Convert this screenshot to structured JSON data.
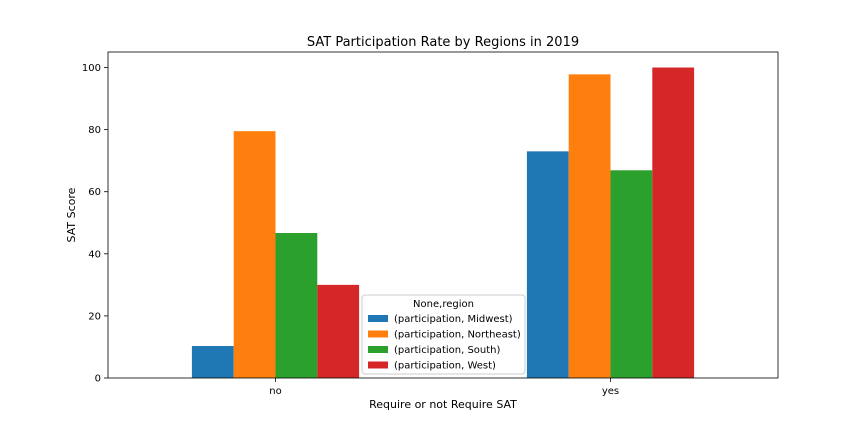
{
  "chart_data": {
    "type": "bar",
    "title": "SAT Participation Rate by Regions in 2019",
    "xlabel": "Require or not Require SAT",
    "ylabel": "SAT Score",
    "categories": [
      "no",
      "yes"
    ],
    "ylim": [
      0,
      105
    ],
    "yticks": [
      0,
      20,
      40,
      60,
      80,
      100
    ],
    "grid": false,
    "legend": {
      "title": "None,region",
      "placement": "bottom-center"
    },
    "series": [
      {
        "name": "(participation, Midwest)",
        "color": "#1f77b4",
        "values": [
          10.3,
          73.0
        ]
      },
      {
        "name": "(participation, Northeast)",
        "color": "#ff7f0e",
        "values": [
          79.5,
          97.8
        ]
      },
      {
        "name": "(participation, South)",
        "color": "#2ca02c",
        "values": [
          46.7,
          66.9
        ]
      },
      {
        "name": "(participation, West)",
        "color": "#d62728",
        "values": [
          30.0,
          100.0
        ]
      }
    ]
  }
}
